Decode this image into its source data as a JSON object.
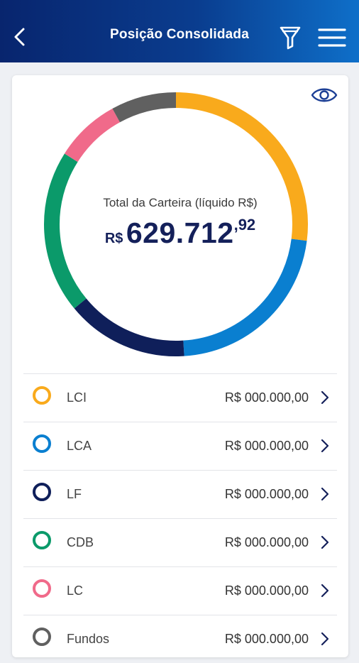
{
  "header": {
    "title": "Posição Consolidada",
    "background_start": "#08256e",
    "background_end": "#0e6fc9"
  },
  "summary": {
    "label": "Total da Carteira (líquido R$)",
    "currency": "R$",
    "value_integer": "629.712",
    "value_cents": ",92"
  },
  "chart_data": {
    "type": "pie",
    "style": "donut",
    "categories": [
      "LCI",
      "LCA",
      "LF",
      "CDB",
      "LC",
      "Fundos"
    ],
    "values": [
      27,
      22,
      15,
      20,
      8,
      8
    ],
    "unit": "percent",
    "colors": [
      "#f9aa1c",
      "#0a7fd0",
      "#0f1f5a",
      "#0b9a6a",
      "#f06a8a",
      "#606060"
    ],
    "start": "top",
    "direction": "clockwise"
  },
  "assets": [
    {
      "name": "LCI",
      "amount": "R$ 000.000,00",
      "color": "#f9aa1c"
    },
    {
      "name": "LCA",
      "amount": "R$ 000.000,00",
      "color": "#0a7fd0"
    },
    {
      "name": "LF",
      "amount": "R$ 000.000,00",
      "color": "#0f1f5a"
    },
    {
      "name": "CDB",
      "amount": "R$ 000.000,00",
      "color": "#0b9a6a"
    },
    {
      "name": "LC",
      "amount": "R$ 000.000,00",
      "color": "#f06a8a"
    },
    {
      "name": "Fundos",
      "amount": "R$ 000.000,00",
      "color": "#606060"
    }
  ],
  "icons": {
    "back": "chevron-left-icon",
    "filter": "filter-icon",
    "menu": "hamburger-menu-icon",
    "visibility": "eye-icon",
    "row_action": "chevron-right-icon"
  }
}
